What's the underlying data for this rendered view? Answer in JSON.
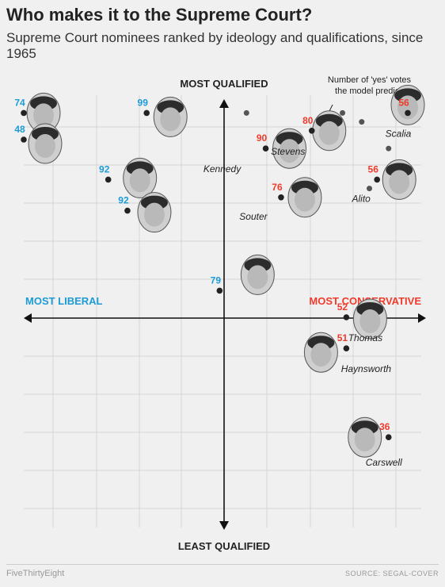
{
  "header": {
    "title": "Who makes it to the Supreme Court?",
    "subtitle": "Supreme Court nominees ranked by ideology and qualifications, since 1965"
  },
  "footer": {
    "brand": "FiveThirtyEight",
    "source": "SOURCE: SEGAL-COVER"
  },
  "colors": {
    "liberal": "#1c9bd6",
    "conservative": "#ef3b2c",
    "point": "#222222",
    "grey_point": "#555555",
    "grid": "#d6d6d6",
    "axis": "#111111"
  },
  "chart_data": {
    "type": "scatter",
    "title": "Who makes it to the Supreme Court?",
    "subtitle": "Supreme Court nominees ranked by ideology and qualifications, since 1965",
    "axis_labels": {
      "top": "MOST QUALIFIED",
      "bottom": "LEAST QUALIFIED",
      "left": "MOST LIBERAL",
      "right": "MOST CONSERVATIVE"
    },
    "annotation": "Number of 'yes' votes the model predicts",
    "xlim": [
      0,
      1
    ],
    "ylim": [
      0,
      1
    ],
    "x_scale": "ideology (liberal to conservative)",
    "y_scale": "qualifications (least to most)",
    "grid": true,
    "points": [
      {
        "x": 0.0,
        "y": 0.96,
        "votes": "74",
        "name": "",
        "side": "liberal"
      },
      {
        "x": 0.0,
        "y": 0.9,
        "votes": "48",
        "name": "",
        "side": "liberal"
      },
      {
        "x": 0.32,
        "y": 0.96,
        "votes": "99",
        "name": "",
        "side": "liberal"
      },
      {
        "x": 0.22,
        "y": 0.81,
        "votes": "92",
        "name": "",
        "side": "liberal"
      },
      {
        "x": 0.27,
        "y": 0.74,
        "votes": "92",
        "name": "",
        "side": "liberal"
      },
      {
        "x": 0.51,
        "y": 0.56,
        "votes": "79",
        "name": "",
        "side": "liberal"
      },
      {
        "x": 1.0,
        "y": 0.96,
        "votes": "56",
        "name": "Scalia",
        "side": "conservative"
      },
      {
        "x": 0.75,
        "y": 0.92,
        "votes": "80",
        "name": "Stevens",
        "side": "conservative"
      },
      {
        "x": 0.63,
        "y": 0.88,
        "votes": "90",
        "name": "Kennedy",
        "side": "conservative"
      },
      {
        "x": 0.92,
        "y": 0.81,
        "votes": "56",
        "name": "Alito",
        "side": "conservative"
      },
      {
        "x": 0.67,
        "y": 0.77,
        "votes": "76",
        "name": "Souter",
        "side": "conservative"
      },
      {
        "x": 0.84,
        "y": 0.5,
        "votes": "52",
        "name": "Thomas",
        "side": "conservative"
      },
      {
        "x": 0.84,
        "y": 0.43,
        "votes": "51",
        "name": "Haynsworth",
        "side": "conservative"
      },
      {
        "x": 0.95,
        "y": 0.23,
        "votes": "36",
        "name": "Carswell",
        "side": "conservative"
      }
    ],
    "unlabeled_points": [
      {
        "x": 0.58,
        "y": 0.96
      },
      {
        "x": 0.83,
        "y": 0.96
      },
      {
        "x": 0.88,
        "y": 0.94
      },
      {
        "x": 0.95,
        "y": 0.88
      },
      {
        "x": 0.9,
        "y": 0.79
      }
    ]
  }
}
